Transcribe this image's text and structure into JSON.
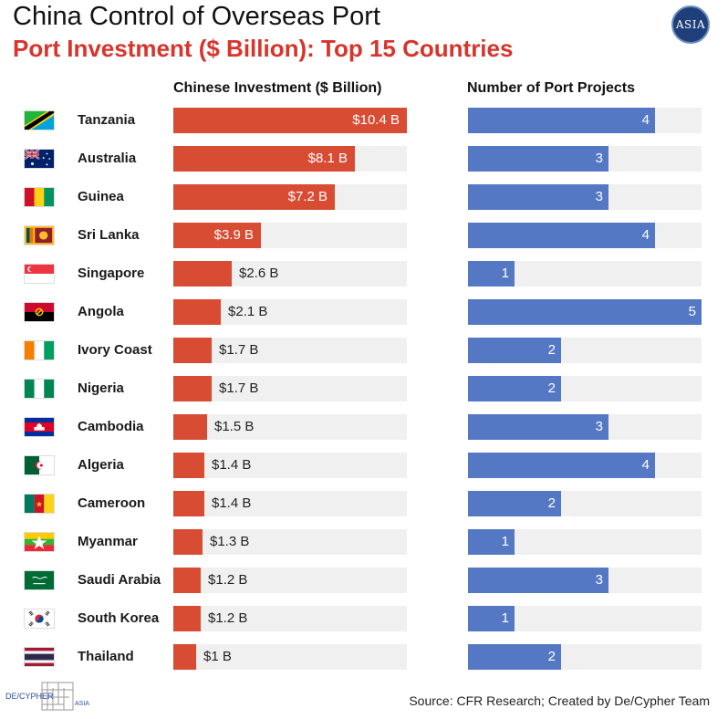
{
  "header": {
    "title": "China Control of Overseas Port",
    "subtitle": "Port Investment ($ Billion): Top 15 Countries",
    "logo_text": "ASIA"
  },
  "columns": {
    "investment_header": "Chinese Investment ($ Billion)",
    "projects_header": "Number of Port Projects"
  },
  "colors": {
    "investment_bar": "#d84c34",
    "projects_bar": "#5478c4",
    "track": "#f0f0f0",
    "subtitle": "#d9342b"
  },
  "footer": {
    "source": "Source: CFR Research; Created by De/Cypher Team",
    "brand": "DE/CYPHER",
    "brand_sub": "ASIA"
  },
  "chart_data": [
    {
      "type": "bar",
      "orientation": "horizontal",
      "title": "Chinese Investment ($ Billion)",
      "categories": [
        "Tanzania",
        "Australia",
        "Guinea",
        "Sri Lanka",
        "Singapore",
        "Angola",
        "Ivory Coast",
        "Nigeria",
        "Cambodia",
        "Algeria",
        "Cameroon",
        "Myanmar",
        "Saudi Arabia",
        "South Korea",
        "Thailand"
      ],
      "values": [
        10.4,
        8.1,
        7.2,
        3.9,
        2.6,
        2.1,
        1.7,
        1.7,
        1.5,
        1.4,
        1.4,
        1.3,
        1.2,
        1.2,
        1.0
      ],
      "labels": [
        "$10.4 B",
        "$8.1 B",
        "$7.2 B",
        "$3.9 B",
        "$2.6 B",
        "$2.1 B",
        "$1.7 B",
        "$1.7 B",
        "$1.5 B",
        "$1.4 B",
        "$1.4 B",
        "$1.3 B",
        "$1.2 B",
        "$1.2 B",
        "$1 B"
      ],
      "xlim": [
        0,
        10.4
      ],
      "grid": false
    },
    {
      "type": "bar",
      "orientation": "horizontal",
      "title": "Number of Port Projects",
      "categories": [
        "Tanzania",
        "Australia",
        "Guinea",
        "Sri Lanka",
        "Singapore",
        "Angola",
        "Ivory Coast",
        "Nigeria",
        "Cambodia",
        "Algeria",
        "Cameroon",
        "Myanmar",
        "Saudi Arabia",
        "South Korea",
        "Thailand"
      ],
      "values": [
        4,
        3,
        3,
        4,
        1,
        5,
        2,
        2,
        3,
        4,
        2,
        1,
        3,
        1,
        2
      ],
      "xlim": [
        0,
        5
      ],
      "grid": false
    }
  ],
  "flags": [
    "tanzania-flag-icon",
    "australia-flag-icon",
    "guinea-flag-icon",
    "sri-lanka-flag-icon",
    "singapore-flag-icon",
    "angola-flag-icon",
    "ivory-coast-flag-icon",
    "nigeria-flag-icon",
    "cambodia-flag-icon",
    "algeria-flag-icon",
    "cameroon-flag-icon",
    "myanmar-flag-icon",
    "saudi-arabia-flag-icon",
    "south-korea-flag-icon",
    "thailand-flag-icon"
  ]
}
